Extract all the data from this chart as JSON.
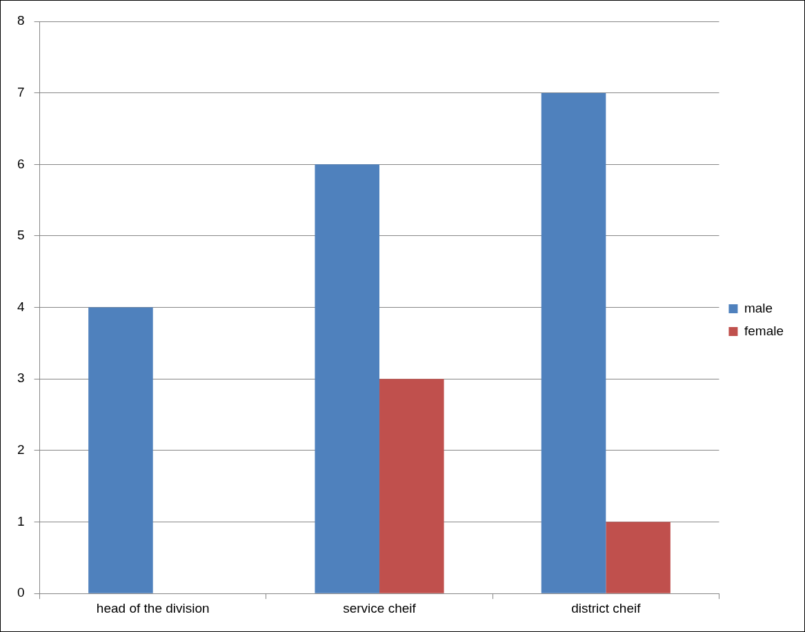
{
  "chart_data": {
    "type": "bar",
    "categories": [
      "head of the division",
      "service cheif",
      "district cheif"
    ],
    "series": [
      {
        "name": "male",
        "color": "#4f81bd",
        "values": [
          4,
          6,
          7
        ]
      },
      {
        "name": "female",
        "color": "#c0504d",
        "values": [
          0,
          3,
          1
        ]
      }
    ],
    "ylim": [
      0,
      8
    ],
    "yticks": [
      0,
      1,
      2,
      3,
      4,
      5,
      6,
      7,
      8
    ],
    "grid": "y",
    "legend": "right"
  }
}
